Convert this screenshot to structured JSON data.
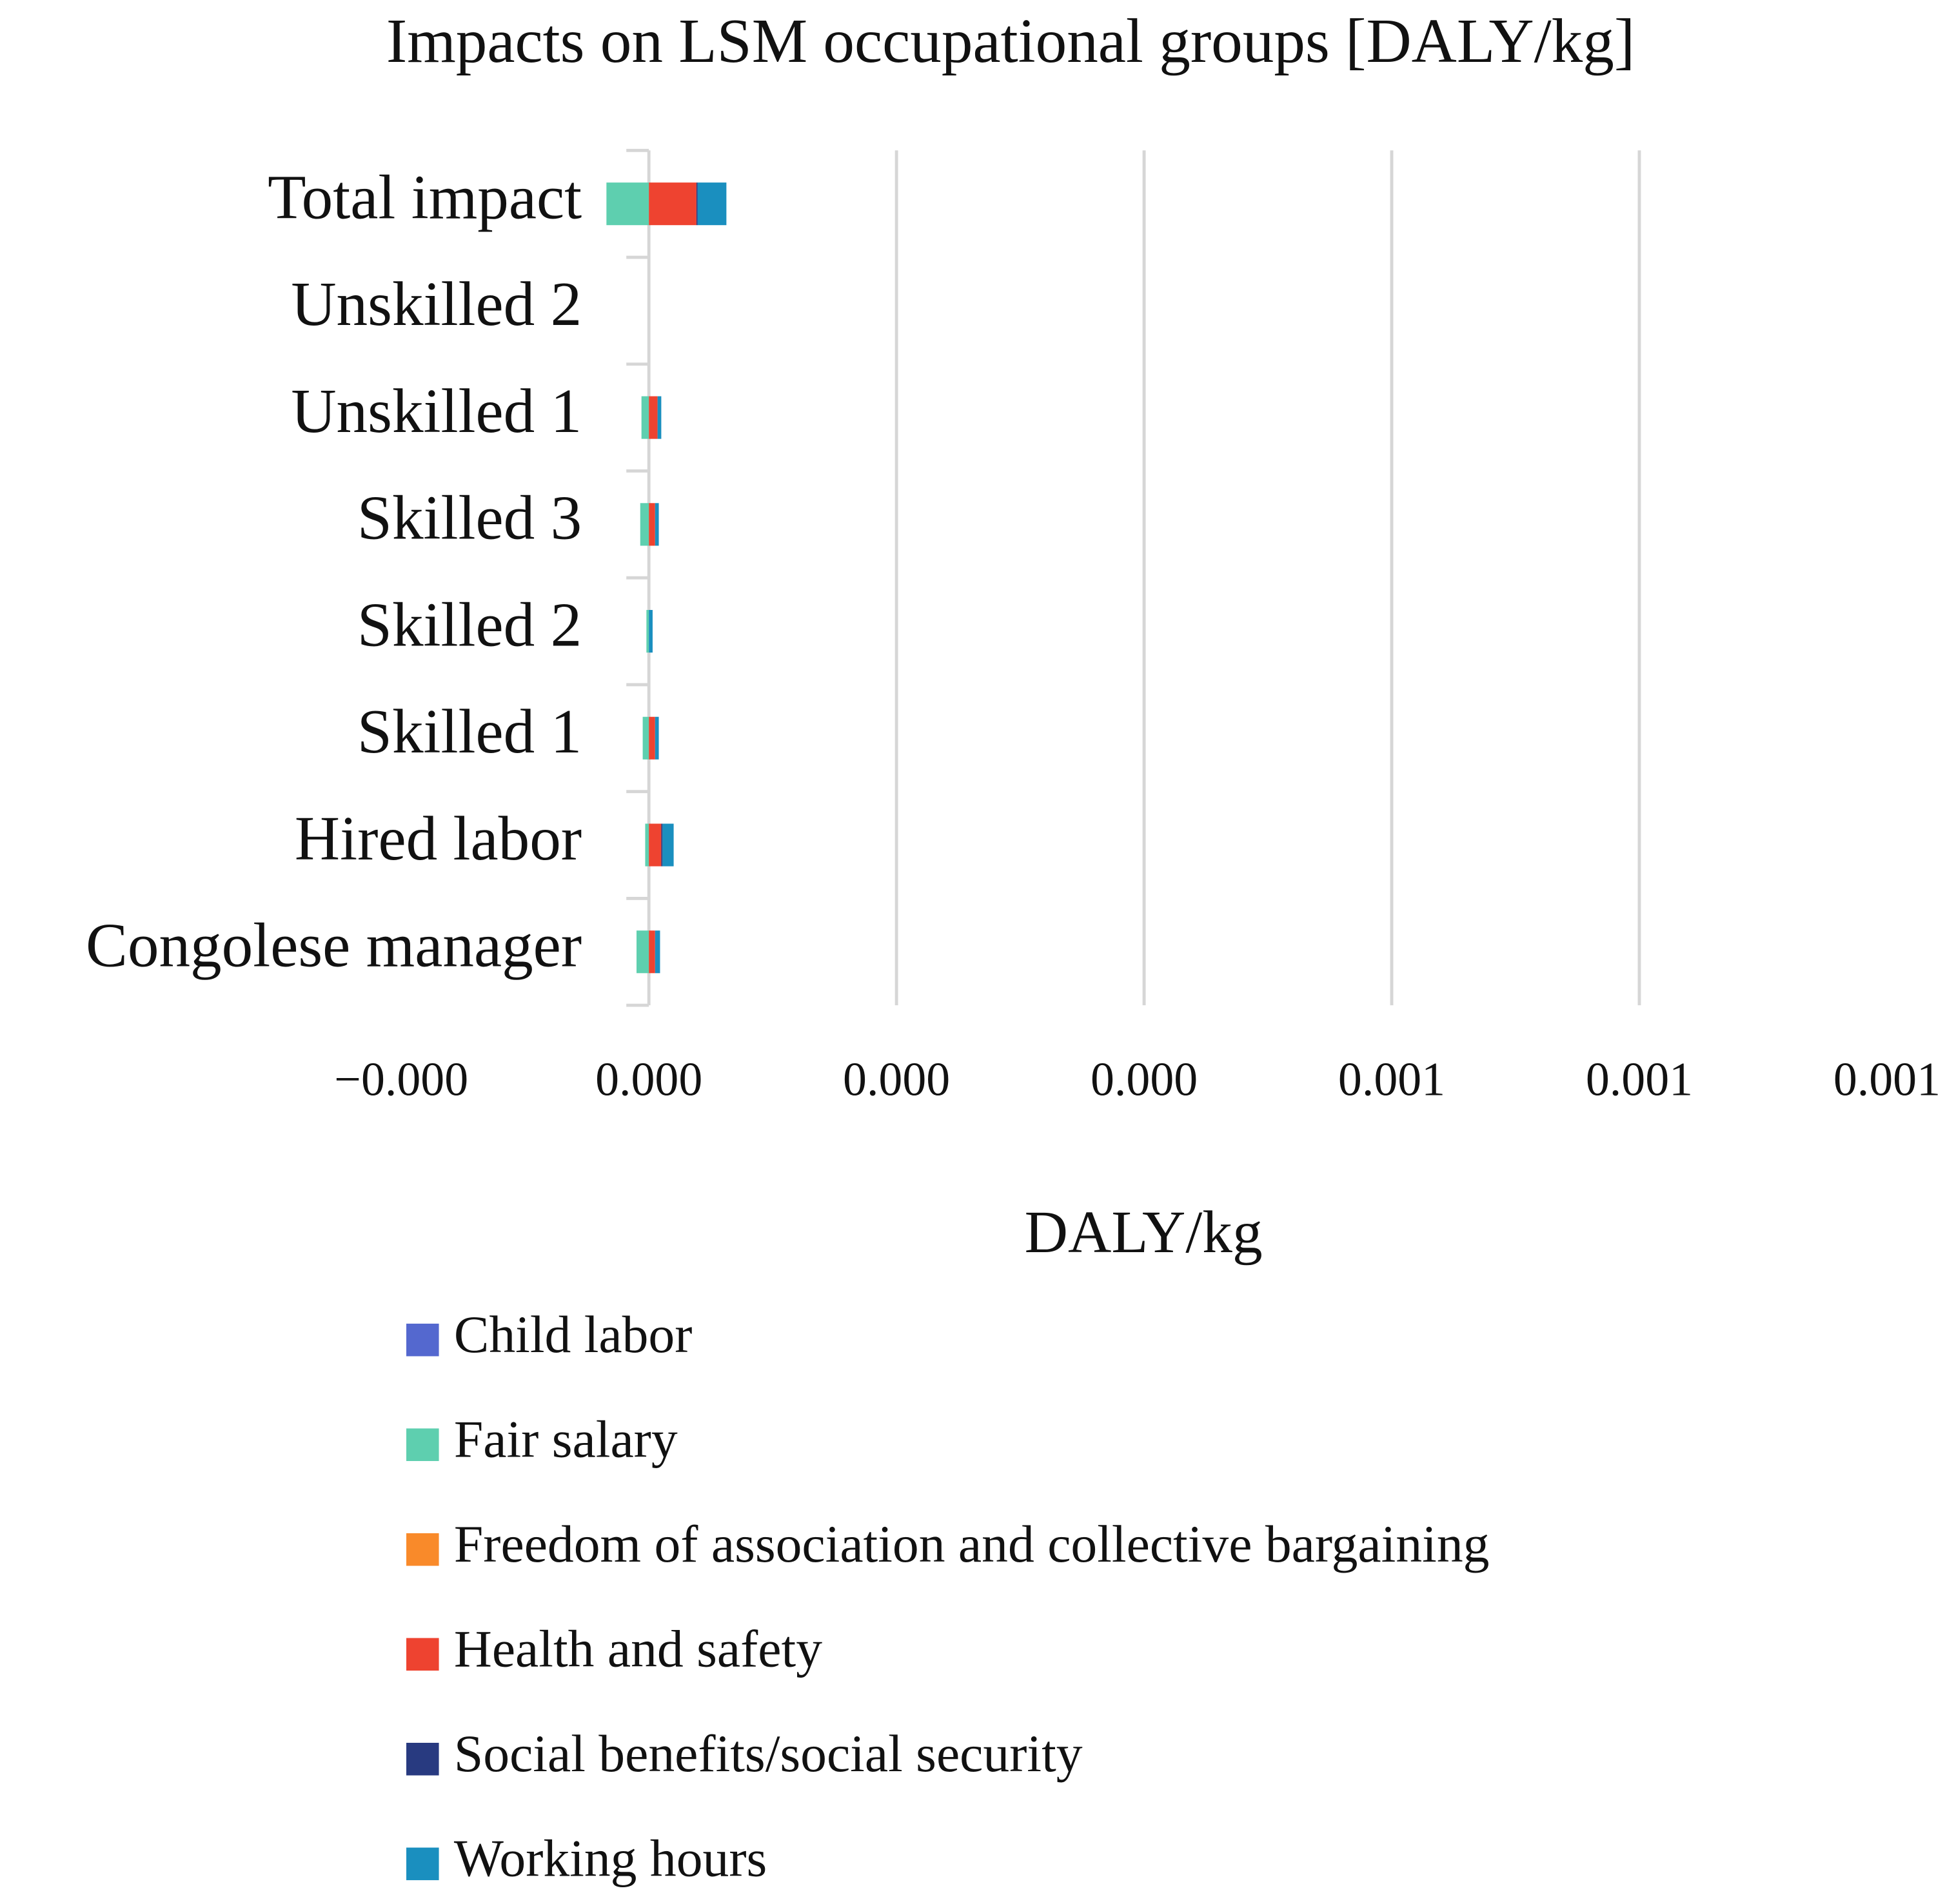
{
  "chart_data": {
    "type": "stacked_barh",
    "title": "Impacts on LSM occupational groups [DALY/kg]",
    "x_label": "DALY/kg",
    "categories": [
      "Total impact",
      "Unskilled 2",
      "Unskilled 1",
      "Skilled 3",
      "Skilled 2",
      "Skilled 1",
      "Hired labor",
      "Congolese manager"
    ],
    "series": [
      {
        "name": "Child labor",
        "color": "#5468cf",
        "values": [
          0,
          0,
          0,
          0,
          0,
          0,
          0,
          0
        ]
      },
      {
        "name": "Fair salary",
        "color": "#5ecfaf",
        "values": [
          -3.43e-05,
          0,
          -6e-06,
          -7e-06,
          -2e-06,
          -5e-06,
          -3e-06,
          -1e-05
        ]
      },
      {
        "name": "Freedom of association and collective bargaining",
        "color": "#f98a2a",
        "values": [
          0,
          0,
          0,
          0,
          0,
          0,
          0,
          0
        ]
      },
      {
        "name": "Health and safety",
        "color": "#ee4330",
        "values": [
          3.84e-05,
          0,
          7e-06,
          5e-06,
          0,
          5e-06,
          1e-05,
          5e-06
        ]
      },
      {
        "name": "Social benefits/social security",
        "color": "#283a80",
        "values": [
          1e-06,
          0,
          0,
          0,
          0,
          0,
          1e-06,
          0
        ]
      },
      {
        "name": "Working hours",
        "color": "#1a8fbf",
        "values": [
          2.32e-05,
          0,
          3e-06,
          3e-06,
          3e-06,
          3e-06,
          9e-06,
          4e-06
        ]
      }
    ],
    "xlim": [
      -0.0002,
      0.001
    ],
    "xticks": [
      {
        "value": -0.0002,
        "label": "−0.000"
      },
      {
        "value": 0,
        "label": "0.000"
      },
      {
        "value": 0.0002,
        "label": "0.000"
      },
      {
        "value": 0.0004,
        "label": "0.000"
      },
      {
        "value": 0.0006,
        "label": "0.001"
      },
      {
        "value": 0.0008,
        "label": "0.001"
      },
      0.001
    ],
    "grid": true,
    "legend": "bottom"
  }
}
